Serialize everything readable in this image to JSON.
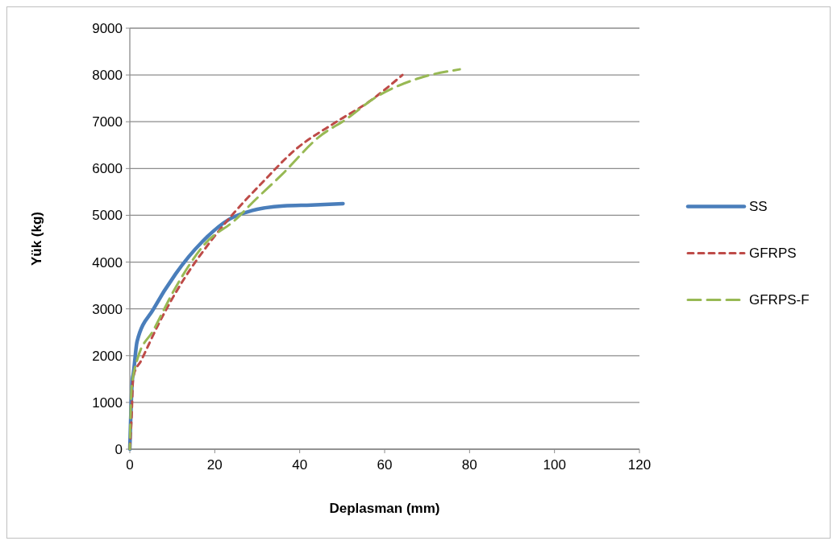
{
  "chart_data": {
    "type": "line",
    "xlabel": "Deplasman (mm)",
    "ylabel": "Yük (kg)",
    "xlim": [
      0,
      120
    ],
    "xticks": [
      0,
      20,
      40,
      60,
      80,
      100,
      120
    ],
    "ylim": [
      0,
      9000
    ],
    "yticks": [
      0,
      1000,
      2000,
      3000,
      4000,
      5000,
      6000,
      7000,
      8000,
      9000
    ],
    "grid": "y",
    "legend": "right",
    "marker": "none",
    "series": [
      {
        "name": "SS",
        "color": "#4a7ebb",
        "line_style": "solid",
        "x": [
          0,
          0.6,
          0.8,
          1.7,
          5.6,
          10.8,
          17.1,
          23.5,
          28.7,
          36.3,
          42.7,
          50.2
        ],
        "values": [
          0,
          1500,
          1600,
          2300,
          3000,
          3750,
          4440,
          4920,
          5100,
          5200,
          5220,
          5250
        ]
      },
      {
        "name": "GFRPS",
        "color": "#be4b48",
        "line_style": "dotted",
        "x": [
          0,
          0.4,
          0.8,
          2.7,
          6.9,
          12.7,
          19,
          24.8,
          31.2,
          38.8,
          48.5,
          56.2,
          64.2
        ],
        "values": [
          0,
          650,
          1550,
          1900,
          2700,
          3630,
          4440,
          5080,
          5700,
          6390,
          6990,
          7420,
          8000
        ]
      },
      {
        "name": "GFRPS-F",
        "color": "#98b954",
        "line_style": "dashed",
        "x": [
          0,
          0.4,
          1.7,
          5.6,
          10.8,
          17.7,
          24.8,
          29.2,
          35.8,
          44.6,
          51.2,
          57.5,
          67.7,
          77.7
        ],
        "values": [
          0,
          1290,
          1900,
          2550,
          3460,
          4390,
          4900,
          5300,
          5870,
          6680,
          7070,
          7500,
          7920,
          8120
        ]
      }
    ]
  }
}
